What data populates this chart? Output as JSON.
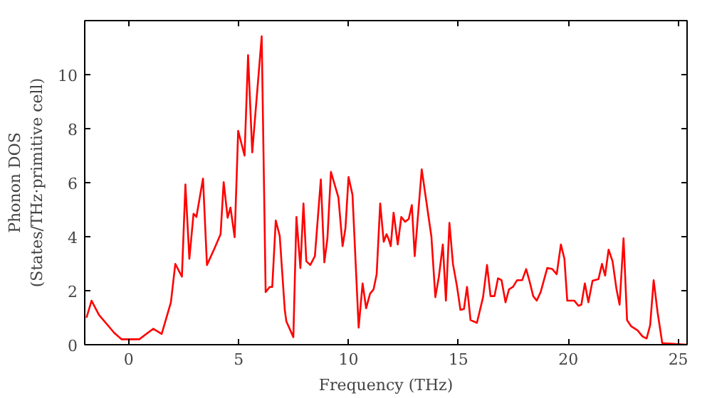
{
  "chart_data": {
    "type": "line",
    "xlabel": "Frequency (THz)",
    "ylabel": "Phonon DOS\n(States/THz·primitive cell)",
    "xlim": [
      -2,
      25.4
    ],
    "ylim": [
      0,
      12
    ],
    "xticks": [
      0,
      5,
      10,
      15,
      20,
      25
    ],
    "yticks": [
      0,
      2,
      4,
      6,
      8,
      10
    ],
    "series": [
      {
        "color": "#ff0000",
        "x": [
          -1.92,
          -1.69,
          -1.35,
          -0.66,
          -0.32,
          0.48,
          1.12,
          1.5,
          1.92,
          2.12,
          2.42,
          2.58,
          2.76,
          2.95,
          3.08,
          3.38,
          3.56,
          3.9,
          4.18,
          4.32,
          4.5,
          4.63,
          4.82,
          4.98,
          5.27,
          5.43,
          5.62,
          6.05,
          6.23,
          6.42,
          6.53,
          6.69,
          6.87,
          7.1,
          7.17,
          7.49,
          7.63,
          7.81,
          7.95,
          8.08,
          8.26,
          8.47,
          8.74,
          8.9,
          9.04,
          9.2,
          9.54,
          9.73,
          9.86,
          10.0,
          10.18,
          10.46,
          10.64,
          10.8,
          10.98,
          11.14,
          11.28,
          11.44,
          11.6,
          11.73,
          11.83,
          11.92,
          12.05,
          12.24,
          12.4,
          12.58,
          12.74,
          12.88,
          13.01,
          13.33,
          13.77,
          13.95,
          14.11,
          14.29,
          14.43,
          14.59,
          14.75,
          14.93,
          15.09,
          15.25,
          15.39,
          15.55,
          15.84,
          16.12,
          16.3,
          16.46,
          16.64,
          16.8,
          16.96,
          17.14,
          17.3,
          17.48,
          17.67,
          17.9,
          18.08,
          18.24,
          18.4,
          18.56,
          18.74,
          19.04,
          19.27,
          19.47,
          19.66,
          19.82,
          19.95,
          20.27,
          20.46,
          20.59,
          20.75,
          20.91,
          21.1,
          21.37,
          21.53,
          21.67,
          21.83,
          22.01,
          22.19,
          22.33,
          22.51,
          22.67,
          22.86,
          23.15,
          23.38,
          23.56,
          23.72,
          23.88,
          24.06,
          24.27,
          25.4
        ],
        "values": [
          1.0,
          1.63,
          1.1,
          0.44,
          0.2,
          0.2,
          0.59,
          0.4,
          1.57,
          2.99,
          2.52,
          5.93,
          3.18,
          4.85,
          4.73,
          6.15,
          2.95,
          3.56,
          4.09,
          6.02,
          4.7,
          5.08,
          3.98,
          7.92,
          7.0,
          10.72,
          7.12,
          11.42,
          1.95,
          2.14,
          2.14,
          4.6,
          4.03,
          1.29,
          0.87,
          0.28,
          4.73,
          2.84,
          5.23,
          3.09,
          2.95,
          3.28,
          6.12,
          3.05,
          3.94,
          6.4,
          5.45,
          3.65,
          4.32,
          6.21,
          5.55,
          0.63,
          2.27,
          1.35,
          1.89,
          2.05,
          2.61,
          5.23,
          3.81,
          4.09,
          3.9,
          3.65,
          4.89,
          3.71,
          4.73,
          4.55,
          4.66,
          5.17,
          3.28,
          6.49,
          4.0,
          1.76,
          2.52,
          3.71,
          1.63,
          4.51,
          2.99,
          2.18,
          1.29,
          1.32,
          2.14,
          0.91,
          0.81,
          1.76,
          2.95,
          1.8,
          1.8,
          2.46,
          2.39,
          1.57,
          2.05,
          2.14,
          2.39,
          2.39,
          2.8,
          2.33,
          1.8,
          1.63,
          1.95,
          2.84,
          2.8,
          2.61,
          3.71,
          3.18,
          1.63,
          1.63,
          1.44,
          1.48,
          2.27,
          1.57,
          2.37,
          2.43,
          2.99,
          2.56,
          3.52,
          3.09,
          2.05,
          1.48,
          3.94,
          0.91,
          0.68,
          0.53,
          0.3,
          0.23,
          0.72,
          2.39,
          1.19,
          0.06,
          0.0
        ]
      }
    ]
  }
}
